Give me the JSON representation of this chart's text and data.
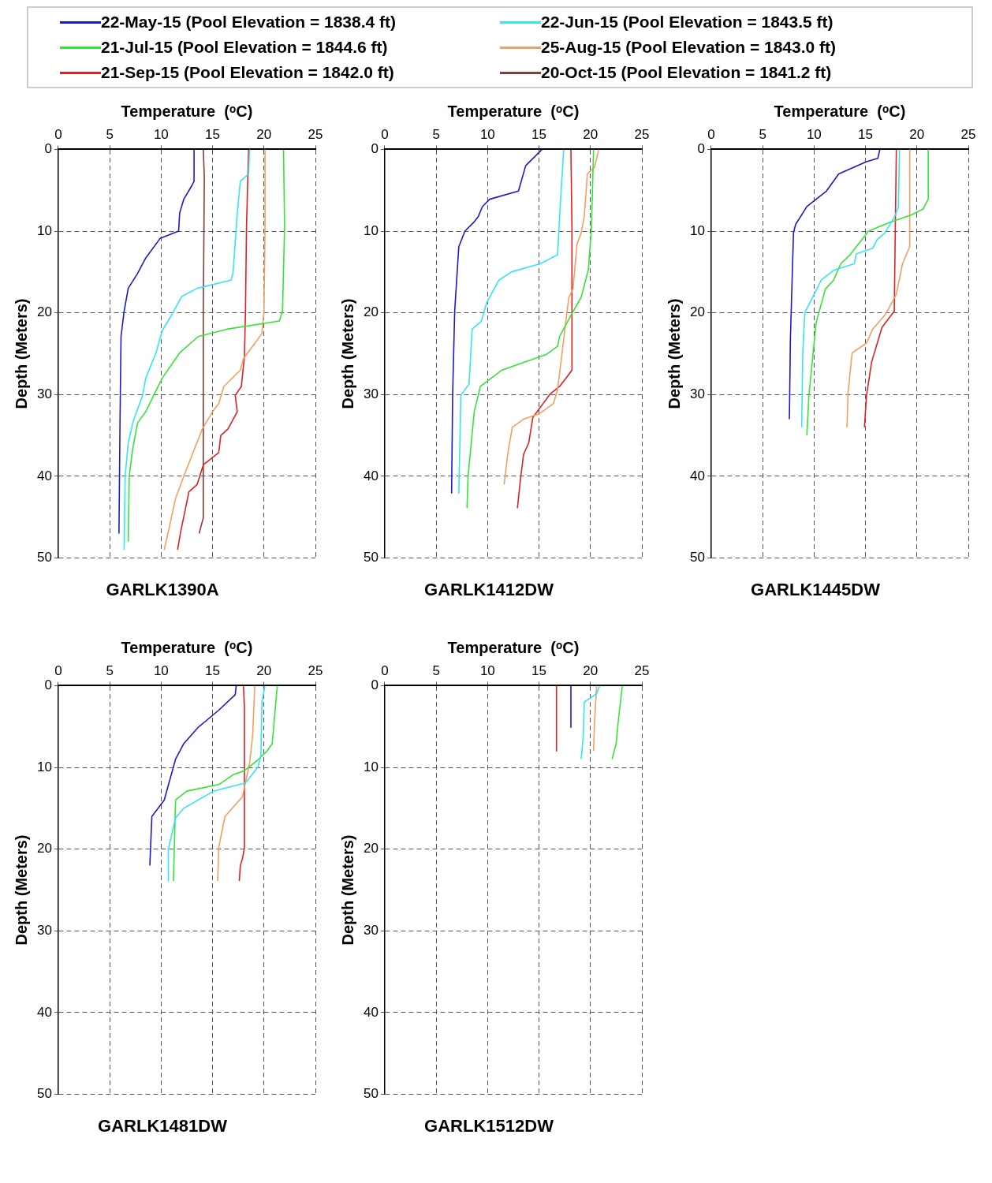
{
  "chart_data": [
    {
      "type": "line",
      "title": "GARLK1390A",
      "xlabel": "Temperature  (ᵒC)",
      "ylabel": "Depth (Meters)",
      "xlim": [
        0,
        25
      ],
      "xticks": [
        0,
        5,
        10,
        15,
        20,
        25
      ],
      "ylim": [
        50,
        0
      ],
      "yticks": [
        0,
        10,
        20,
        30,
        40,
        50
      ],
      "grid": true,
      "legend": "top",
      "series": [
        {
          "name": "22-May-15 (Pool Elevation = 1838.4 ft)",
          "color": "#1a1acc",
          "x": [
            13.2,
            13.2,
            13.0,
            12.2,
            11.8,
            11.7,
            9.9,
            8.5,
            7.7,
            6.8,
            6.4,
            6.1,
            6.0,
            5.9
          ],
          "values": [
            0,
            3.9,
            4.4,
            6.1,
            7.8,
            10,
            10.9,
            13.3,
            15.2,
            17,
            19.8,
            22.9,
            33.5,
            47
          ]
        },
        {
          "name": "22-Jun-15 (Pool Elevation = 1843.5 ft)",
          "color": "#33e6f2",
          "x": [
            18.6,
            18.5,
            17.7,
            17.4,
            17.0,
            16.8,
            13.5,
            12.0,
            11.1,
            10.1,
            9.5,
            8.5,
            8.2,
            7.3,
            6.8,
            6.5,
            6.4
          ],
          "values": [
            0,
            3,
            3.9,
            7.8,
            15,
            16,
            17,
            18,
            20.1,
            22.2,
            24.9,
            28,
            30.1,
            33.2,
            35.9,
            40,
            49
          ]
        },
        {
          "name": "21-Jul-15 (Pool Elevation = 1844.6 ft)",
          "color": "#33e633",
          "x": [
            21.9,
            22.0,
            21.8,
            21.5,
            16.4,
            13.6,
            11.8,
            10.1,
            8.5,
            7.7,
            7.2,
            6.9,
            6.8
          ],
          "values": [
            0,
            9.5,
            19.8,
            21,
            22,
            22.9,
            24.9,
            28,
            32.1,
            33.5,
            36.9,
            40,
            48
          ]
        },
        {
          "name": "25-Aug-15 (Pool Elevation = 1843.0 ft)",
          "color": "#f0a060",
          "x": [
            20.1,
            20.1,
            20.0,
            19.8,
            19.3,
            18.0,
            17.7,
            16.1,
            15.6,
            15.0,
            14.0,
            12.2,
            11.4,
            10.8,
            10.3
          ],
          "values": [
            0,
            9.5,
            19.8,
            22.5,
            23.4,
            25.6,
            27,
            29,
            31.1,
            32.1,
            34.2,
            40,
            42.7,
            46.2,
            49
          ]
        },
        {
          "name": "21-Sep-15 (Pool Elevation = 1842.0 ft)",
          "color": "#e02020",
          "x": [
            18.5,
            18.3,
            18.2,
            18.1,
            17.8,
            17.2,
            17.4,
            16.5,
            15.8,
            15.6,
            14.1,
            13.5,
            12.7,
            11.9,
            11.6
          ],
          "values": [
            0,
            9.5,
            19.8,
            25.3,
            29,
            30.1,
            32.1,
            34.2,
            35,
            37.1,
            38.6,
            41,
            41.9,
            46.8,
            49
          ]
        },
        {
          "name": "20-Oct-15 (Pool Elevation = 1841.2 ft)",
          "color": "#8b3a3a",
          "x": [
            14.1,
            14.2,
            14.1,
            14.1,
            13.9,
            13.7
          ],
          "values": [
            0,
            3.4,
            19.8,
            45.1,
            46,
            47
          ]
        }
      ]
    },
    {
      "type": "line",
      "title": "GARLK1412DW",
      "xlabel": "Temperature  (ᵒC)",
      "ylabel": "Depth (Meters)",
      "xlim": [
        0,
        25
      ],
      "xticks": [
        0,
        5,
        10,
        15,
        20,
        25
      ],
      "ylim": [
        50,
        0
      ],
      "yticks": [
        0,
        10,
        20,
        30,
        40,
        50
      ],
      "grid": true,
      "series": [
        {
          "color": "#1a1acc",
          "x": [
            15.3,
            13.7,
            13.0,
            10.2,
            9.5,
            9.1,
            8.6,
            7.8,
            7.2,
            6.8,
            6.6,
            6.5
          ],
          "values": [
            0,
            2,
            5.1,
            6.1,
            7,
            8.2,
            9,
            10,
            11.9,
            19.8,
            30.1,
            42.1
          ]
        },
        {
          "color": "#33e6f2",
          "x": [
            17.4,
            17.1,
            16.8,
            15.1,
            12.3,
            11.1,
            9.9,
            9.4,
            8.5,
            8.2,
            7.4,
            7.2
          ],
          "values": [
            0,
            6.1,
            12.9,
            14,
            15,
            16,
            18.8,
            21,
            22,
            28.7,
            30.1,
            42.1
          ]
        },
        {
          "color": "#33e633",
          "x": [
            20.3,
            20.1,
            19.8,
            19.1,
            18.2,
            17.0,
            16.8,
            15.7,
            11.4,
            9.3,
            8.7,
            8.1,
            8.0
          ],
          "values": [
            0,
            9.5,
            14.7,
            18.1,
            20.1,
            22.9,
            24.1,
            25.1,
            27,
            29,
            32.1,
            40,
            43.9
          ]
        },
        {
          "color": "#f0a060",
          "x": [
            20.8,
            20.4,
            19.7,
            19.4,
            19.1,
            18.7,
            18.3,
            17.9,
            17.7,
            17.2,
            16.8,
            16.4,
            15.1,
            13.5,
            12.4,
            12.0,
            11.6
          ],
          "values": [
            0,
            2.2,
            3,
            8.2,
            10.2,
            11.6,
            17.1,
            18.1,
            20.1,
            25.3,
            29.4,
            31.1,
            32.3,
            33,
            34,
            36.9,
            41
          ]
        },
        {
          "color": "#e02020",
          "x": [
            18.1,
            18.2,
            18.2,
            17.8,
            17.0,
            16.1,
            14.4,
            14.0,
            13.5,
            13.2,
            12.9
          ],
          "values": [
            0,
            9.5,
            27,
            27.7,
            29,
            29.9,
            32.8,
            35.9,
            37.3,
            40.3,
            43.9
          ]
        }
      ]
    },
    {
      "type": "line",
      "title": "GARLK1445DW",
      "xlabel": "Temperature  (ᵒC)",
      "ylabel": "Depth (Meters)",
      "xlim": [
        0,
        25
      ],
      "xticks": [
        0,
        5,
        10,
        15,
        20,
        25
      ],
      "ylim": [
        50,
        0
      ],
      "yticks": [
        0,
        10,
        20,
        30,
        40,
        50
      ],
      "grid": true,
      "series": [
        {
          "color": "#1a1acc",
          "x": [
            16.4,
            16.2,
            15.1,
            12.4,
            11.2,
            9.3,
            8.2,
            8.0,
            7.7,
            7.6
          ],
          "values": [
            0,
            1.1,
            1.5,
            3,
            5.1,
            7,
            9.2,
            10.2,
            23.2,
            33
          ]
        },
        {
          "color": "#33e6f2",
          "x": [
            18.3,
            18.2,
            17.8,
            16.9,
            16.1,
            15.7,
            14.1,
            13.9,
            11.9,
            10.7,
            9.1,
            8.9,
            8.8
          ],
          "values": [
            0,
            7.1,
            8.3,
            10.2,
            11.1,
            12.1,
            12.8,
            14,
            14.8,
            16,
            20,
            24.9,
            34
          ]
        },
        {
          "color": "#33e633",
          "x": [
            21.1,
            21.1,
            20.6,
            19.5,
            17.2,
            15.3,
            13.5,
            12.6,
            11.9,
            11.1,
            10.2,
            9.5,
            9.3
          ],
          "values": [
            0,
            6.1,
            7.3,
            8,
            9,
            10,
            12.9,
            14,
            16,
            17.1,
            21.2,
            30.1,
            35
          ]
        },
        {
          "color": "#f0a060",
          "x": [
            19.3,
            19.3,
            18.6,
            18.0,
            17.0,
            15.7,
            15.1,
            13.7,
            13.3,
            13.2
          ],
          "values": [
            0,
            11.9,
            14,
            17.7,
            20.1,
            22,
            23.7,
            24.9,
            29.9,
            34
          ]
        },
        {
          "color": "#e02020",
          "x": [
            18.0,
            17.9,
            17.8,
            16.6,
            15.6,
            15.1,
            14.9
          ],
          "values": [
            0,
            9.5,
            19.8,
            21.8,
            26,
            30.1,
            34
          ]
        }
      ]
    },
    {
      "type": "line",
      "title": "GARLK1481DW",
      "xlabel": "Temperature  (ᵒC)",
      "ylabel": "Depth (Meters)",
      "xlim": [
        0,
        25
      ],
      "xticks": [
        0,
        5,
        10,
        15,
        20,
        25
      ],
      "ylim": [
        50,
        0
      ],
      "yticks": [
        0,
        10,
        20,
        30,
        40,
        50
      ],
      "grid": true,
      "series": [
        {
          "color": "#1a1acc",
          "x": [
            17.3,
            17.2,
            15.6,
            13.6,
            12.2,
            11.4,
            10.3,
            9.1,
            8.9
          ],
          "values": [
            0,
            1.1,
            3,
            5.1,
            7.1,
            9,
            14,
            16,
            22
          ]
        },
        {
          "color": "#33e6f2",
          "x": [
            20.1,
            19.8,
            19.7,
            19.4,
            18.2,
            15.1,
            12.2,
            11.4,
            10.7,
            10.7
          ],
          "values": [
            0,
            2,
            8.5,
            10,
            11.9,
            12.9,
            15,
            16.2,
            20,
            23.9
          ]
        },
        {
          "color": "#33e633",
          "x": [
            21.3,
            21.1,
            20.8,
            20.3,
            19.3,
            18.1,
            17.0,
            15.6,
            12.5,
            11.4,
            11.2
          ],
          "values": [
            0,
            2.7,
            7.1,
            8,
            9.2,
            10.4,
            10.9,
            12.1,
            12.9,
            14,
            23.9
          ]
        },
        {
          "color": "#f0a060",
          "x": [
            19.1,
            18.9,
            18.6,
            17.9,
            16.2,
            15.6,
            15.5
          ],
          "values": [
            0,
            6.1,
            9.5,
            13.6,
            16,
            19.8,
            23.9
          ]
        },
        {
          "color": "#e02020",
          "x": [
            18.0,
            18.1,
            18.1,
            17.9,
            17.7,
            17.6
          ],
          "values": [
            0,
            2.7,
            19.8,
            21.2,
            22,
            23.9
          ]
        }
      ]
    },
    {
      "type": "line",
      "title": "GARLK1512DW",
      "xlabel": "Temperature  (ᵒC)",
      "ylabel": "Depth (Meters)",
      "xlim": [
        0,
        25
      ],
      "xticks": [
        0,
        5,
        10,
        15,
        20,
        25
      ],
      "ylim": [
        50,
        0
      ],
      "yticks": [
        0,
        10,
        20,
        30,
        40,
        50
      ],
      "grid": true,
      "series": [
        {
          "color": "#1a1acc",
          "x": [
            18.1,
            18.1
          ],
          "values": [
            0,
            5.1
          ]
        },
        {
          "color": "#33e6f2",
          "x": [
            20.9,
            20.6,
            19.4,
            19.3,
            19.1
          ],
          "values": [
            0,
            1,
            2,
            6.1,
            9
          ]
        },
        {
          "color": "#33e633",
          "x": [
            23.1,
            22.7,
            22.5,
            22.1
          ],
          "values": [
            0,
            4.4,
            7.1,
            9
          ]
        },
        {
          "color": "#f0a060",
          "x": [
            20.6,
            20.4,
            20.3
          ],
          "values": [
            0,
            4.4,
            8
          ]
        },
        {
          "color": "#e02020",
          "x": [
            16.7,
            16.7
          ],
          "values": [
            0,
            8
          ]
        }
      ]
    }
  ]
}
